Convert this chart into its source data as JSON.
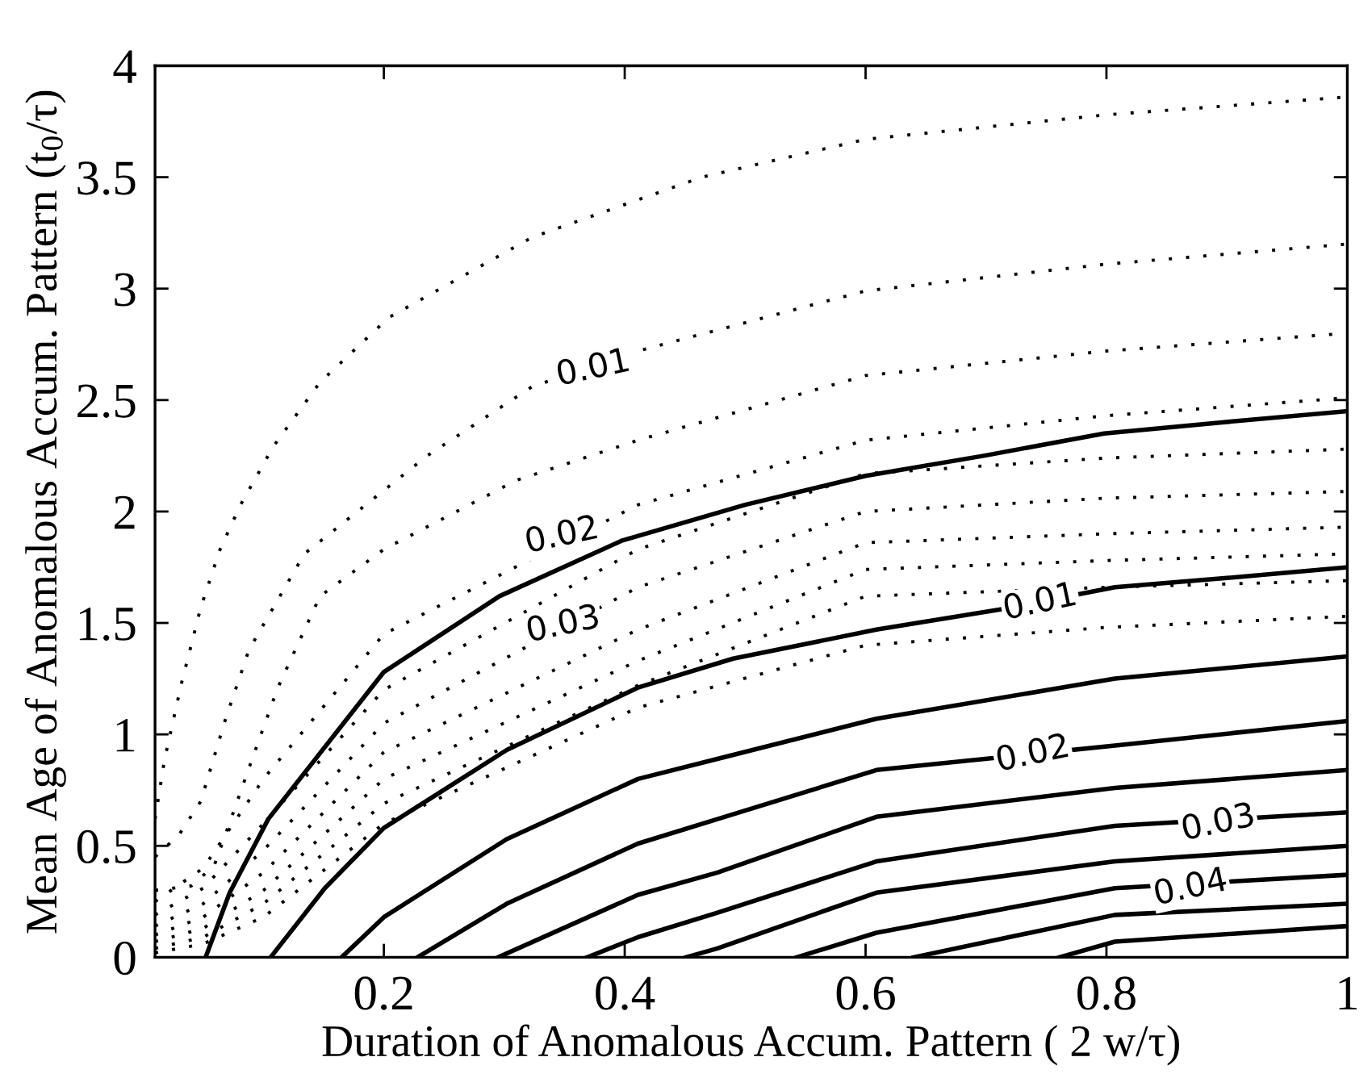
{
  "chart_data": {
    "type": "line",
    "xlabel": "Duration of Anomalous Accum. Pattern ( 2 w/τ)",
    "ylabel": "Mean Age of Anomalous Accum. Pattern (t$_{0}$/τ)",
    "xlim": [
      0.01,
      1
    ],
    "ylim": [
      0,
      4
    ],
    "xticks": [
      0.2,
      0.4,
      0.6,
      0.8,
      1
    ],
    "yticks": [
      0,
      0.5,
      1,
      1.5,
      2,
      2.5,
      3,
      3.5,
      4
    ],
    "grid": false,
    "marker": "none",
    "series": [
      {
        "color": "#000000",
        "line_style": "solid",
        "x": [
          0.052,
          0.072,
          0.104,
          0.2,
          0.296,
          0.398,
          0.5,
          0.6,
          0.698,
          0.798,
          0.896,
          1.0
        ],
        "values": [
          0,
          0.29,
          0.62,
          1.28,
          1.62,
          1.87,
          2.03,
          2.16,
          2.25,
          2.35,
          2.4,
          2.45
        ]
      },
      {
        "color": "#000000",
        "line_style": "solid",
        "x": [
          0.106,
          0.151,
          0.2,
          0.302,
          0.411,
          0.49,
          0.609,
          0.711,
          0.807,
          0.896,
          1.0
        ],
        "values": [
          0,
          0.31,
          0.58,
          0.93,
          1.21,
          1.34,
          1.47,
          1.56,
          1.66,
          1.7,
          1.75
        ]
      },
      {
        "color": "#000000",
        "line_style": "solid",
        "x": [
          0.165,
          0.2,
          0.302,
          0.411,
          0.477,
          0.609,
          0.807,
          1.0
        ],
        "values": [
          0,
          0.18,
          0.53,
          0.8,
          0.89,
          1.07,
          1.25,
          1.35
        ]
      },
      {
        "color": "#000000",
        "line_style": "solid",
        "x": [
          0.228,
          0.302,
          0.411,
          0.477,
          0.609,
          0.807,
          1.0
        ],
        "values": [
          0,
          0.24,
          0.51,
          0.62,
          0.84,
          0.95,
          1.06
        ]
      },
      {
        "color": "#000000",
        "line_style": "solid",
        "x": [
          0.295,
          0.411,
          0.477,
          0.609,
          0.807,
          1.0
        ],
        "values": [
          0,
          0.28,
          0.38,
          0.63,
          0.76,
          0.84
        ]
      },
      {
        "color": "#000000",
        "line_style": "solid",
        "x": [
          0.369,
          0.411,
          0.477,
          0.609,
          0.807,
          1.0
        ],
        "values": [
          0,
          0.09,
          0.2,
          0.43,
          0.59,
          0.65
        ]
      },
      {
        "color": "#000000",
        "line_style": "solid",
        "x": [
          0.451,
          0.477,
          0.609,
          0.807,
          1.0
        ],
        "values": [
          0,
          0.04,
          0.29,
          0.43,
          0.5
        ]
      },
      {
        "color": "#000000",
        "line_style": "solid",
        "x": [
          0.543,
          0.609,
          0.807,
          1.0
        ],
        "values": [
          0,
          0.11,
          0.31,
          0.37
        ]
      },
      {
        "color": "#000000",
        "line_style": "solid",
        "x": [
          0.64,
          0.807,
          1.0
        ],
        "values": [
          0,
          0.19,
          0.24
        ]
      },
      {
        "color": "#000000",
        "line_style": "solid",
        "x": [
          0.761,
          0.807,
          1.0
        ],
        "values": [
          0,
          0.07,
          0.14
        ]
      },
      {
        "color": "#000000",
        "line_style": "dotted",
        "x": [
          0.01,
          0.018,
          0.032,
          0.048,
          0.064,
          0.081,
          0.108,
          0.147,
          0.204,
          0.323,
          0.464,
          0.6,
          0.8,
          1.0
        ],
        "values": [
          0.62,
          0.89,
          1.23,
          1.57,
          1.83,
          2.03,
          2.29,
          2.58,
          2.87,
          3.23,
          3.5,
          3.67,
          3.78,
          3.86
        ]
      },
      {
        "color": "#000000",
        "line_style": "dotted",
        "x": [
          0.01,
          0.03,
          0.048,
          0.068,
          0.088,
          0.134,
          0.236,
          0.323,
          0.411,
          0.6,
          0.8,
          1.0
        ],
        "values": [
          0.45,
          0.55,
          0.7,
          1.06,
          1.38,
          1.81,
          2.25,
          2.56,
          2.72,
          2.99,
          3.11,
          3.2
        ]
      },
      {
        "color": "#000000",
        "line_style": "dotted",
        "x": [
          0.01,
          0.04,
          0.059,
          0.075,
          0.092,
          0.112,
          0.147,
          0.2,
          0.31,
          0.411,
          0.6,
          0.8,
          1.0
        ],
        "values": [
          0.3,
          0.32,
          0.41,
          0.65,
          0.91,
          1.21,
          1.62,
          1.83,
          2.14,
          2.32,
          2.61,
          2.72,
          2.8
        ]
      },
      {
        "color": "#000000",
        "line_style": "dotted",
        "x": [
          0.01,
          0.05,
          0.1,
          0.2,
          0.411,
          0.6,
          0.8,
          1.0
        ],
        "values": [
          0.25,
          0.4,
          0.8,
          1.45,
          2.03,
          2.32,
          2.43,
          2.51
        ]
      },
      {
        "color": "#000000",
        "line_style": "dotted",
        "x": [
          0.01,
          0.05,
          0.1,
          0.2,
          0.411,
          0.6,
          0.8,
          1.0
        ],
        "values": [
          0.19,
          0.31,
          0.6,
          1.2,
          1.83,
          2.17,
          2.24,
          2.28
        ]
      },
      {
        "color": "#000000",
        "line_style": "dotted",
        "x": [
          0.01,
          0.05,
          0.1,
          0.2,
          0.411,
          0.6,
          0.8,
          1.0
        ],
        "values": [
          0.14,
          0.24,
          0.48,
          1.05,
          1.66,
          2.0,
          2.06,
          2.09
        ]
      },
      {
        "color": "#000000",
        "line_style": "dotted",
        "x": [
          0.01,
          0.05,
          0.1,
          0.2,
          0.411,
          0.6,
          0.8,
          1.0
        ],
        "values": [
          0.1,
          0.18,
          0.38,
          0.92,
          1.47,
          1.86,
          1.9,
          1.93
        ]
      },
      {
        "color": "#000000",
        "line_style": "dotted",
        "x": [
          0.01,
          0.05,
          0.1,
          0.2,
          0.411,
          0.6,
          0.8,
          1.0
        ],
        "values": [
          0.07,
          0.13,
          0.3,
          0.8,
          1.33,
          1.74,
          1.78,
          1.81
        ]
      },
      {
        "color": "#000000",
        "line_style": "dotted",
        "x": [
          0.01,
          0.05,
          0.1,
          0.2,
          0.411,
          0.6,
          0.8,
          1.0
        ],
        "values": [
          0.04,
          0.09,
          0.24,
          0.69,
          1.22,
          1.62,
          1.66,
          1.69
        ]
      },
      {
        "color": "#000000",
        "line_style": "dotted",
        "x": [
          0.01,
          0.05,
          0.1,
          0.2,
          0.411,
          0.6,
          0.8,
          1.0
        ],
        "values": [
          0.02,
          0.06,
          0.18,
          0.6,
          1.12,
          1.4,
          1.48,
          1.53
        ]
      }
    ],
    "annotations": [
      {
        "text": "0.01",
        "x": 0.374,
        "y": 2.64
      },
      {
        "text": "0.02",
        "x": 0.348,
        "y": 1.89
      },
      {
        "text": "0.03",
        "x": 0.349,
        "y": 1.49
      },
      {
        "text": "0.01",
        "x": 0.745,
        "y": 1.59
      },
      {
        "text": "0.02",
        "x": 0.739,
        "y": 0.91
      },
      {
        "text": "0.03",
        "x": 0.893,
        "y": 0.6
      },
      {
        "text": "0.04",
        "x": 0.87,
        "y": 0.31
      }
    ]
  }
}
